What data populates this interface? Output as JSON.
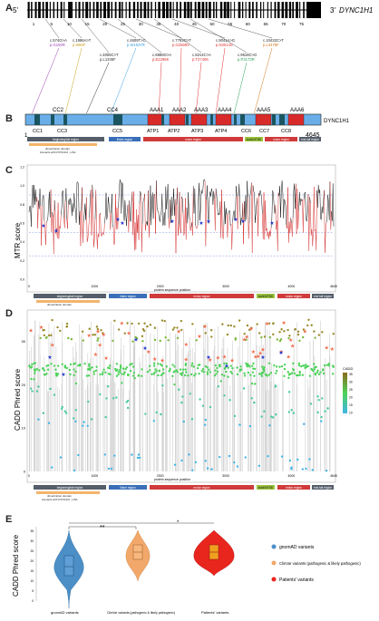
{
  "panels": {
    "a": "A",
    "b": "B",
    "c": "C",
    "d": "D",
    "e": "E"
  },
  "gene": {
    "five_prime": "5'",
    "three_prime": "3'",
    "name": "DYNC1H1",
    "exon_ticks": [
      "1",
      "5",
      "10",
      "15",
      "20",
      "25",
      "30",
      "35",
      "40",
      "45",
      "50",
      "55",
      "60",
      "65",
      "70",
      "75"
    ]
  },
  "variants": [
    {
      "c": "c.574G>A",
      "p": "p.G192R",
      "color": "#9a3fb2"
    },
    {
      "c": "c.1996A>T",
      "p": "p.I666F",
      "color": "#c8a020"
    },
    {
      "c": "c.4006C>T",
      "p": "p.L1336F",
      "color": "#333333"
    },
    {
      "c": "c.4609T>C",
      "p": "p.W1537R",
      "color": "#3a9be0"
    },
    {
      "c": "c.6889G>A",
      "p": "p.E2296K",
      "color": "#e03030"
    },
    {
      "c": "c.7793G>T",
      "p": "p.G2598V",
      "color": "#e03030"
    },
    {
      "c": "c.8214C>A",
      "p": "p.T2740K",
      "color": "#e03030"
    },
    {
      "c": "c.9041A>G",
      "p": "p.N3014S",
      "color": "#e03030"
    },
    {
      "c": "c.9518C>G",
      "p": "p.P3173R",
      "color": "#2aa055"
    },
    {
      "c": "c.10432C>T",
      "p": "p.L3478F",
      "color": "#d07a1a"
    }
  ],
  "protein": {
    "name": "DYNC1H1",
    "start": "1",
    "end": "4645",
    "top_domains": [
      "CC2",
      "CC4",
      "AAA1",
      "AAA2",
      "AAA3",
      "AAA4",
      "AAA5",
      "AAA6"
    ],
    "bottom_domains": [
      "CC1",
      "CC3",
      "CC5",
      "ATP1",
      "ATP2",
      "ATP3",
      "ATP4",
      "CC6",
      "CC7",
      "CC8"
    ],
    "colors": {
      "backbone": "#6aaee8",
      "aaa": "#d92a2a",
      "cc": "#1a5560"
    }
  },
  "regions": {
    "tail": "beginning/tail region",
    "linker": "linker region",
    "motor": "motor region",
    "stalk": "stalk/MTBD",
    "motor2": "motor region",
    "end_tail": "end tail region",
    "dimerization": "dimerization domain",
    "interacts": "interacts with  DYNC1I2  ,  LIS1"
  },
  "mtr_chart": {
    "type": "line",
    "ylabel": "MTR score",
    "xlabel": "protein sequence position",
    "x_ticks": [
      "0",
      "1000",
      "2000",
      "3000",
      "4000",
      "4645"
    ],
    "y_ticks": [
      "0.0",
      "0.2",
      "0.4",
      "0.6",
      "0.8",
      "1.0",
      "1.2"
    ],
    "colors": {
      "line": "#111111",
      "low": "#d42a2a",
      "dashed": "#8899dd",
      "star": "#2233cc"
    }
  },
  "cadd_chart": {
    "type": "scatter",
    "ylabel": "CADD Phred score",
    "xlabel": "protein sequence position",
    "x_ticks": [
      "0",
      "1000",
      "2000",
      "3000",
      "4000",
      "4645"
    ],
    "y_ticks": [
      "0",
      "10",
      "20",
      "30"
    ],
    "legend_title": "CADD",
    "legend_ticks": [
      "35",
      "30",
      "25",
      "20",
      "15",
      "10"
    ]
  },
  "violin": {
    "ylabel": "CADD Phred score",
    "groups": [
      {
        "label": "gnomAD variants",
        "color": "#4c8fc6"
      },
      {
        "label": "ClinVar variants\n(pathogenic and likely pathogenic)",
        "color": "#f2a86a"
      },
      {
        "label": "Patients' variants",
        "color": "#e8261e"
      }
    ],
    "legend": [
      {
        "label": "gnomAD variants",
        "color": "#4c8fc6"
      },
      {
        "label": "ClinVar variants (pathogenic & likely pathogenic)",
        "color": "#f2a86a"
      },
      {
        "label": "Patients' variants",
        "color": "#e8261e"
      }
    ],
    "sig_left": "**",
    "sig_right": "*",
    "y_ticks": [
      "0",
      "5",
      "10",
      "15",
      "20",
      "25",
      "30",
      "35"
    ]
  }
}
